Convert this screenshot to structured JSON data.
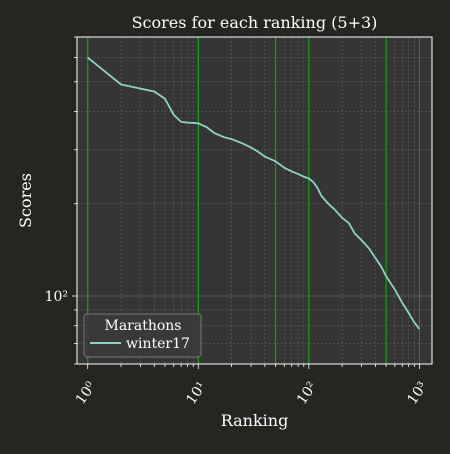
{
  "chart_data": {
    "type": "line",
    "title": "Scores for each ranking (5+3)",
    "xlabel": "Ranking",
    "ylabel": "Scores",
    "xscale": "log",
    "yscale": "log",
    "xlim": [
      0.8,
      1300
    ],
    "ylim": [
      60,
      700
    ],
    "x_ticks": [
      {
        "value": 1,
        "label": "10⁰"
      },
      {
        "value": 10,
        "label": "10¹"
      },
      {
        "value": 100,
        "label": "10²"
      },
      {
        "value": 1000,
        "label": "10³"
      }
    ],
    "y_ticks": [
      {
        "value": 100,
        "label": "10²"
      }
    ],
    "grid": true,
    "vertical_markers": [
      1,
      10,
      50,
      100,
      500
    ],
    "legend": {
      "title": "Marathons",
      "placement": "lower-left",
      "entries": [
        "winter17"
      ]
    },
    "series": [
      {
        "name": "winter17",
        "color": "#8fd3c6",
        "points": [
          [
            1,
            600
          ],
          [
            2,
            490
          ],
          [
            3,
            475
          ],
          [
            4,
            465
          ],
          [
            5,
            440
          ],
          [
            6,
            390
          ],
          [
            7,
            370
          ],
          [
            8,
            368
          ],
          [
            10,
            366
          ],
          [
            12,
            355
          ],
          [
            14,
            340
          ],
          [
            17,
            330
          ],
          [
            20,
            325
          ],
          [
            25,
            315
          ],
          [
            30,
            305
          ],
          [
            35,
            295
          ],
          [
            40,
            285
          ],
          [
            50,
            275
          ],
          [
            60,
            262
          ],
          [
            70,
            255
          ],
          [
            80,
            250
          ],
          [
            90,
            245
          ],
          [
            100,
            242
          ],
          [
            110,
            235
          ],
          [
            120,
            225
          ],
          [
            130,
            212
          ],
          [
            150,
            200
          ],
          [
            170,
            192
          ],
          [
            200,
            180
          ],
          [
            230,
            173
          ],
          [
            260,
            160
          ],
          [
            300,
            152
          ],
          [
            350,
            143
          ],
          [
            400,
            133
          ],
          [
            450,
            125
          ],
          [
            500,
            116
          ],
          [
            550,
            110
          ],
          [
            600,
            105
          ],
          [
            700,
            95
          ],
          [
            800,
            88
          ],
          [
            900,
            82
          ],
          [
            1000,
            78
          ]
        ]
      }
    ],
    "colors": {
      "background": "#262522",
      "plot_background": "#353535",
      "grid": "#6a6a6a",
      "marker_lines": "#0aa00a",
      "axes": "#ffffff"
    }
  }
}
